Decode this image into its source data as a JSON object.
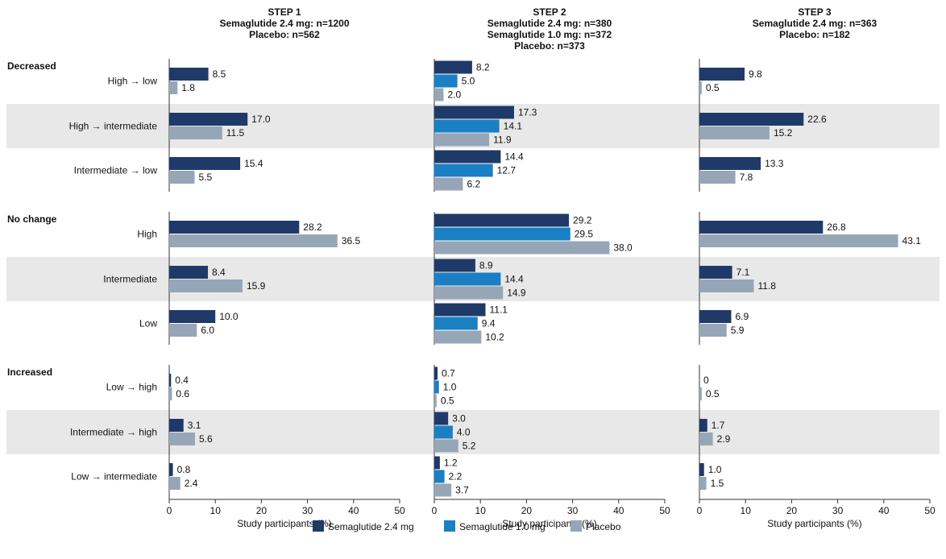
{
  "colors": {
    "sema24": "#1f3a68",
    "sema10": "#1b7fc4",
    "placebo": "#97a6b6",
    "band": "#e8e8e8",
    "axis": "#333333"
  },
  "legend": [
    {
      "key": "sema24",
      "label": "Semaglutide 2.4 mg"
    },
    {
      "key": "sema10",
      "label": "Semaglutide 1.0 mg"
    },
    {
      "key": "placebo",
      "label": "Placebo"
    }
  ],
  "groups": [
    {
      "label": "Decreased",
      "categories": [
        "High → low",
        "High → intermediate",
        "Intermediate → low"
      ]
    },
    {
      "label": "No change",
      "categories": [
        "High",
        "Intermediate",
        "Low"
      ]
    },
    {
      "label": "Increased",
      "categories": [
        "Low → high",
        "Intermediate → high",
        "Low → intermediate"
      ]
    }
  ],
  "chart_data": [
    {
      "type": "bar",
      "title_lines": [
        "STEP 1",
        "Semaglutide 2.4 mg: n=1200",
        "Placebo: n=562"
      ],
      "xlabel": "Study participants (%)",
      "xlim": [
        0,
        50
      ],
      "xticks": [
        0,
        10,
        20,
        30,
        40,
        50
      ],
      "categories": [
        "High → low",
        "High → intermediate",
        "Intermediate → low",
        "High",
        "Intermediate",
        "Low",
        "Low → high",
        "Intermediate → high",
        "Low → intermediate"
      ],
      "series": [
        {
          "key": "sema24",
          "name": "Semaglutide 2.4 mg",
          "values": [
            8.5,
            17.0,
            15.4,
            28.2,
            8.4,
            10.0,
            0.4,
            3.1,
            0.8
          ],
          "labels": [
            "8.5",
            "17.0",
            "15.4",
            "28.2",
            "8.4",
            "10.0",
            "0.4",
            "3.1",
            "0.8"
          ]
        },
        {
          "key": "placebo",
          "name": "Placebo",
          "values": [
            1.8,
            11.5,
            5.5,
            36.5,
            15.9,
            6.0,
            0.6,
            5.6,
            2.4
          ],
          "labels": [
            "1.8",
            "11.5",
            "5.5",
            "36.5",
            "15.9",
            "6.0",
            "0.6",
            "5.6",
            "2.4"
          ]
        }
      ]
    },
    {
      "type": "bar",
      "title_lines": [
        "STEP 2",
        "Semaglutide 2.4 mg: n=380",
        "Semaglutide 1.0 mg: n=372",
        "Placebo: n=373"
      ],
      "xlabel": "Study participants (%)",
      "xlim": [
        0,
        50
      ],
      "xticks": [
        0,
        10,
        20,
        30,
        40,
        50
      ],
      "categories": [
        "High → low",
        "High → intermediate",
        "Intermediate → low",
        "High",
        "Intermediate",
        "Low",
        "Low → high",
        "Intermediate → high",
        "Low → intermediate"
      ],
      "series": [
        {
          "key": "sema24",
          "name": "Semaglutide 2.4 mg",
          "values": [
            8.2,
            17.3,
            14.4,
            29.2,
            8.9,
            11.1,
            0.7,
            3.0,
            1.2
          ],
          "labels": [
            "8.2",
            "17.3",
            "14.4",
            "29.2",
            "8.9",
            "11.1",
            "0.7",
            "3.0",
            "1.2"
          ]
        },
        {
          "key": "sema10",
          "name": "Semaglutide 1.0 mg",
          "values": [
            5.0,
            14.1,
            12.7,
            29.5,
            14.4,
            9.4,
            1.0,
            4.0,
            2.2
          ],
          "labels": [
            "5.0",
            "14.1",
            "12.7",
            "29.5",
            "14.4",
            "9.4",
            "1.0",
            "4.0",
            "2.2"
          ]
        },
        {
          "key": "placebo",
          "name": "Placebo",
          "values": [
            2.0,
            11.9,
            6.2,
            38.0,
            14.9,
            10.2,
            0.5,
            5.2,
            3.7
          ],
          "labels": [
            "2.0",
            "11.9",
            "6.2",
            "38.0",
            "14.9",
            "10.2",
            "0.5",
            "5.2",
            "3.7"
          ]
        }
      ]
    },
    {
      "type": "bar",
      "title_lines": [
        "STEP 3",
        "Semaglutide 2.4 mg: n=363",
        "Placebo: n=182"
      ],
      "xlabel": "Study participants (%)",
      "xlim": [
        0,
        50
      ],
      "xticks": [
        0,
        10,
        20,
        30,
        40,
        50
      ],
      "categories": [
        "High → low",
        "High → intermediate",
        "Intermediate → low",
        "High",
        "Intermediate",
        "Low",
        "Low → high",
        "Intermediate → high",
        "Low → intermediate"
      ],
      "series": [
        {
          "key": "sema24",
          "name": "Semaglutide 2.4 mg",
          "values": [
            9.8,
            22.6,
            13.3,
            26.8,
            7.1,
            6.9,
            0,
            1.7,
            1.0
          ],
          "labels": [
            "9.8",
            "22.6",
            "13.3",
            "26.8",
            "7.1",
            "6.9",
            "0",
            "1.7",
            "1.0"
          ]
        },
        {
          "key": "placebo",
          "name": "Placebo",
          "values": [
            0.5,
            15.2,
            7.8,
            43.1,
            11.8,
            5.9,
            0.5,
            2.9,
            1.5
          ],
          "labels": [
            "0.5",
            "15.2",
            "7.8",
            "43.1",
            "11.8",
            "5.9",
            "0.5",
            "2.9",
            "1.5"
          ]
        }
      ]
    }
  ]
}
